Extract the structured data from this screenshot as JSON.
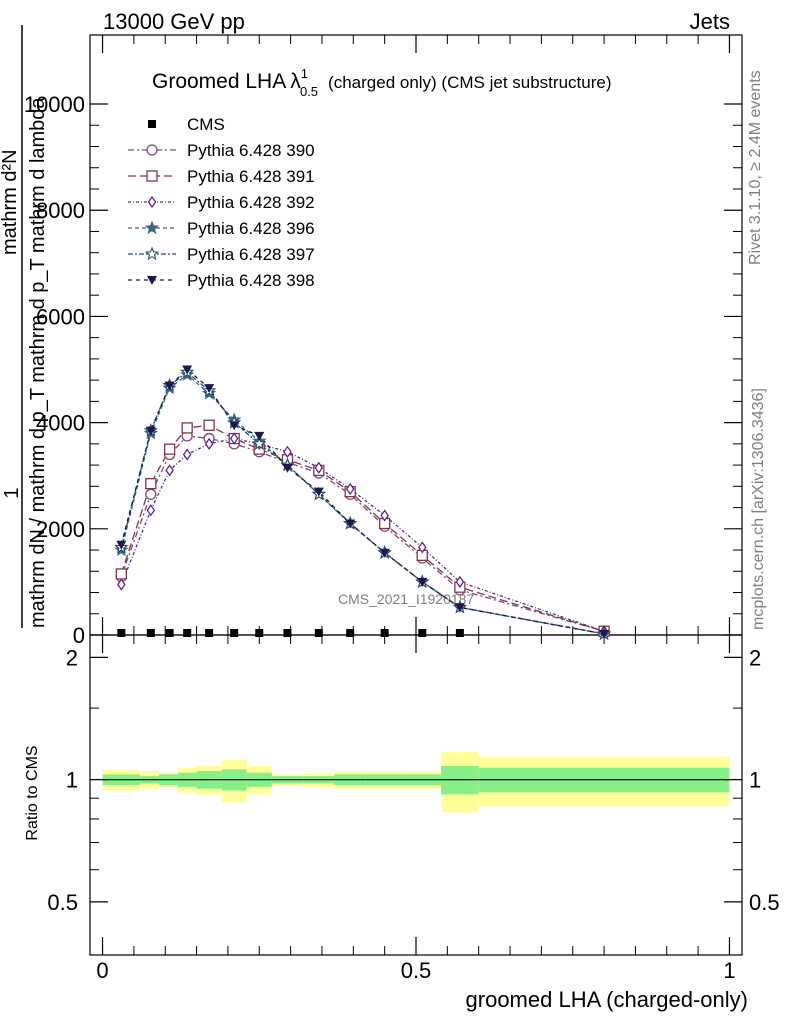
{
  "header": {
    "left": "13000 GeV pp",
    "right": "Jets"
  },
  "title": {
    "main": "Groomed LHA",
    "symbol": "λ",
    "sup": "1",
    "sub": "0.5",
    "suffix": "(charged only) (CMS jet substructure)"
  },
  "side_labels": {
    "rivet": "Rivet 3.1.10, ≥ 2.4M events",
    "mcplots": "mcplots.cern.ch [arXiv:1306.3436]"
  },
  "watermark": "CMS_2021_I1920187",
  "ylabel_main": {
    "one": "1",
    "numer": "mathrm d²N",
    "denom": "mathrm dN / mathrm d p_T mathrm d p_T mathrm d lambda"
  },
  "ylabel_ratio": "Ratio to CMS",
  "xlabel": "groomed LHA (charged-only)",
  "colors": {
    "p390": "#7b4a7d",
    "p391": "#7b3a4a",
    "p392": "#5a2a8a",
    "p396": "#3a6a7a",
    "p397": "#2a4a6a",
    "p398": "#1a1a4a",
    "band_inner": "#88ee88",
    "band_outer": "#ffff99"
  },
  "chart_data": [
    {
      "type": "line",
      "panel": "main",
      "xlim": [
        -0.02,
        1.02
      ],
      "ylim": [
        0,
        11300
      ],
      "yticks": [
        0,
        2000,
        4000,
        6000,
        8000,
        10000
      ],
      "ytick_labels": [
        "0",
        "2000",
        "4000",
        "6000",
        "8000",
        "10000"
      ],
      "x": [
        0.03,
        0.077,
        0.107,
        0.135,
        0.17,
        0.21,
        0.25,
        0.295,
        0.345,
        0.395,
        0.45,
        0.51,
        0.57,
        0.8
      ],
      "series": [
        {
          "name": "CMS",
          "marker": "square-filled",
          "color": "#000000",
          "x": [
            0.03,
            0.077,
            0.107,
            0.135,
            0.17,
            0.21,
            0.25,
            0.295,
            0.345,
            0.395,
            0.45,
            0.51,
            0.57
          ],
          "values": [
            0,
            0,
            0,
            0,
            0,
            0,
            0,
            0,
            0,
            0,
            0,
            0,
            0
          ]
        },
        {
          "name": "Pythia 6.428 390",
          "marker": "circle-open",
          "color": "#7b4a7d",
          "values": [
            1100,
            2650,
            3400,
            3750,
            3700,
            3600,
            3450,
            3250,
            3050,
            2650,
            2050,
            1450,
            850,
            70
          ]
        },
        {
          "name": "Pythia 6.428 391",
          "marker": "square-open",
          "color": "#7b3a4a",
          "values": [
            1150,
            2850,
            3500,
            3900,
            3950,
            3700,
            3500,
            3300,
            3100,
            2700,
            2100,
            1500,
            900,
            70
          ]
        },
        {
          "name": "Pythia 6.428 392",
          "marker": "diamond-open",
          "color": "#5a2a8a",
          "values": [
            950,
            2350,
            3100,
            3400,
            3600,
            3700,
            3600,
            3450,
            3150,
            2750,
            2250,
            1650,
            1000,
            70
          ]
        },
        {
          "name": "Pythia 6.428 396",
          "marker": "star-filled",
          "color": "#3a6a7a",
          "values": [
            1600,
            3800,
            4650,
            4900,
            4550,
            4050,
            3650,
            3200,
            2650,
            2100,
            1550,
            1000,
            520,
            20
          ]
        },
        {
          "name": "Pythia 6.428 397",
          "marker": "star-open",
          "color": "#2a4a6a",
          "values": [
            1650,
            3850,
            4700,
            4950,
            4600,
            4000,
            3600,
            3200,
            2650,
            2100,
            1550,
            1000,
            520,
            20
          ]
        },
        {
          "name": "Pythia 6.428 398",
          "marker": "triangle-down-filled",
          "color": "#1a1a4a",
          "values": [
            1700,
            3850,
            4700,
            5000,
            4650,
            3950,
            3750,
            3150,
            2700,
            2100,
            1550,
            1000,
            520,
            20
          ]
        }
      ]
    },
    {
      "type": "area",
      "panel": "ratio",
      "xlim": [
        -0.02,
        1.02
      ],
      "ylim": [
        0.37,
        2.27
      ],
      "yticks": [
        0.5,
        1,
        2
      ],
      "ytick_labels": [
        "0.5",
        "1",
        "2"
      ],
      "xticks": [
        0,
        0.5,
        1
      ],
      "xtick_labels": [
        "0",
        "0.5",
        "1"
      ],
      "bins": [
        {
          "lo": 0.0,
          "hi": 0.06,
          "inner": 0.03,
          "outer": 0.06
        },
        {
          "lo": 0.06,
          "hi": 0.09,
          "inner": 0.02,
          "outer": 0.05
        },
        {
          "lo": 0.09,
          "hi": 0.12,
          "inner": 0.03,
          "outer": 0.04
        },
        {
          "lo": 0.12,
          "hi": 0.15,
          "inner": 0.04,
          "outer": 0.07
        },
        {
          "lo": 0.15,
          "hi": 0.19,
          "inner": 0.05,
          "outer": 0.08
        },
        {
          "lo": 0.19,
          "hi": 0.23,
          "inner": 0.06,
          "outer": 0.12
        },
        {
          "lo": 0.23,
          "hi": 0.27,
          "inner": 0.04,
          "outer": 0.08
        },
        {
          "lo": 0.27,
          "hi": 0.32,
          "inner": 0.02,
          "outer": 0.03
        },
        {
          "lo": 0.32,
          "hi": 0.37,
          "inner": 0.02,
          "outer": 0.04
        },
        {
          "lo": 0.37,
          "hi": 0.42,
          "inner": 0.03,
          "outer": 0.05
        },
        {
          "lo": 0.42,
          "hi": 0.48,
          "inner": 0.03,
          "outer": 0.05
        },
        {
          "lo": 0.48,
          "hi": 0.54,
          "inner": 0.03,
          "outer": 0.05
        },
        {
          "lo": 0.54,
          "hi": 0.6,
          "inner": 0.08,
          "outer": 0.17
        },
        {
          "lo": 0.6,
          "hi": 1.0,
          "inner": 0.07,
          "outer": 0.14
        }
      ]
    }
  ]
}
